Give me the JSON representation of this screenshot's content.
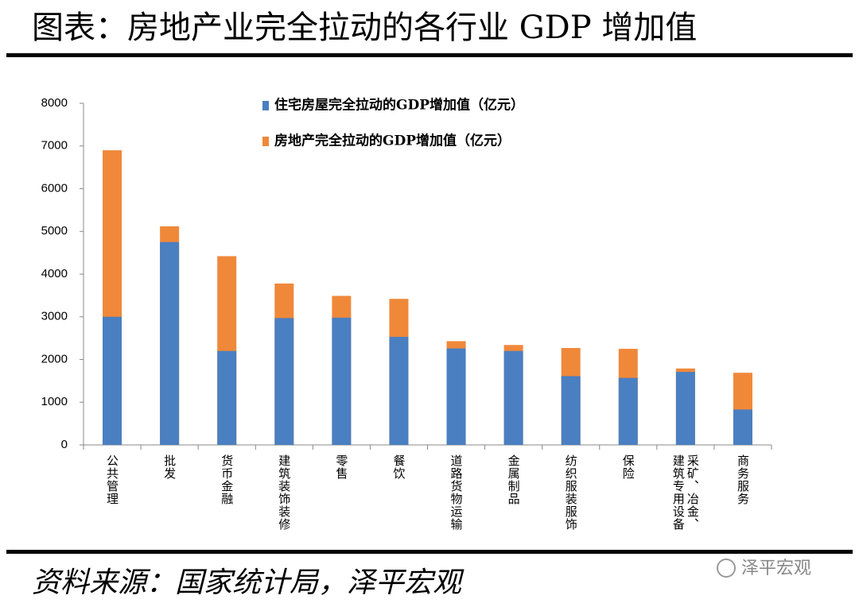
{
  "chart_data": {
    "type": "bar",
    "overlap": true,
    "title": "图表：房地产业完全拉动的各行业 GDP 增加值",
    "categories": [
      "公共管理",
      "批发",
      "货币金融",
      "建筑装饰装修",
      "零售",
      "餐饮",
      "道路货物运输",
      "金属制品",
      "纺织服装服饰",
      "保险",
      "采矿、冶金、建筑专用设备",
      "商务服务"
    ],
    "series": [
      {
        "name": "房地产完全拉动的GDP增加值（亿元）",
        "color": "#f0883a",
        "values": [
          6900,
          5120,
          4420,
          3780,
          3490,
          3420,
          2430,
          2340,
          2270,
          2250,
          1790,
          1690
        ]
      },
      {
        "name": "住宅房屋完全拉动的GDP增加值（亿元）",
        "color": "#4a7fc1",
        "values": [
          3000,
          4750,
          2200,
          2970,
          2980,
          2530,
          2260,
          2200,
          1610,
          1570,
          1710,
          830
        ]
      }
    ],
    "ylim": [
      0,
      8000
    ],
    "yticks": [
      0,
      1000,
      2000,
      3000,
      4000,
      5000,
      6000,
      7000,
      8000
    ],
    "grid": false
  },
  "source": "资料来源：国家统计局，泽平宏观",
  "watermark": "泽平宏观"
}
